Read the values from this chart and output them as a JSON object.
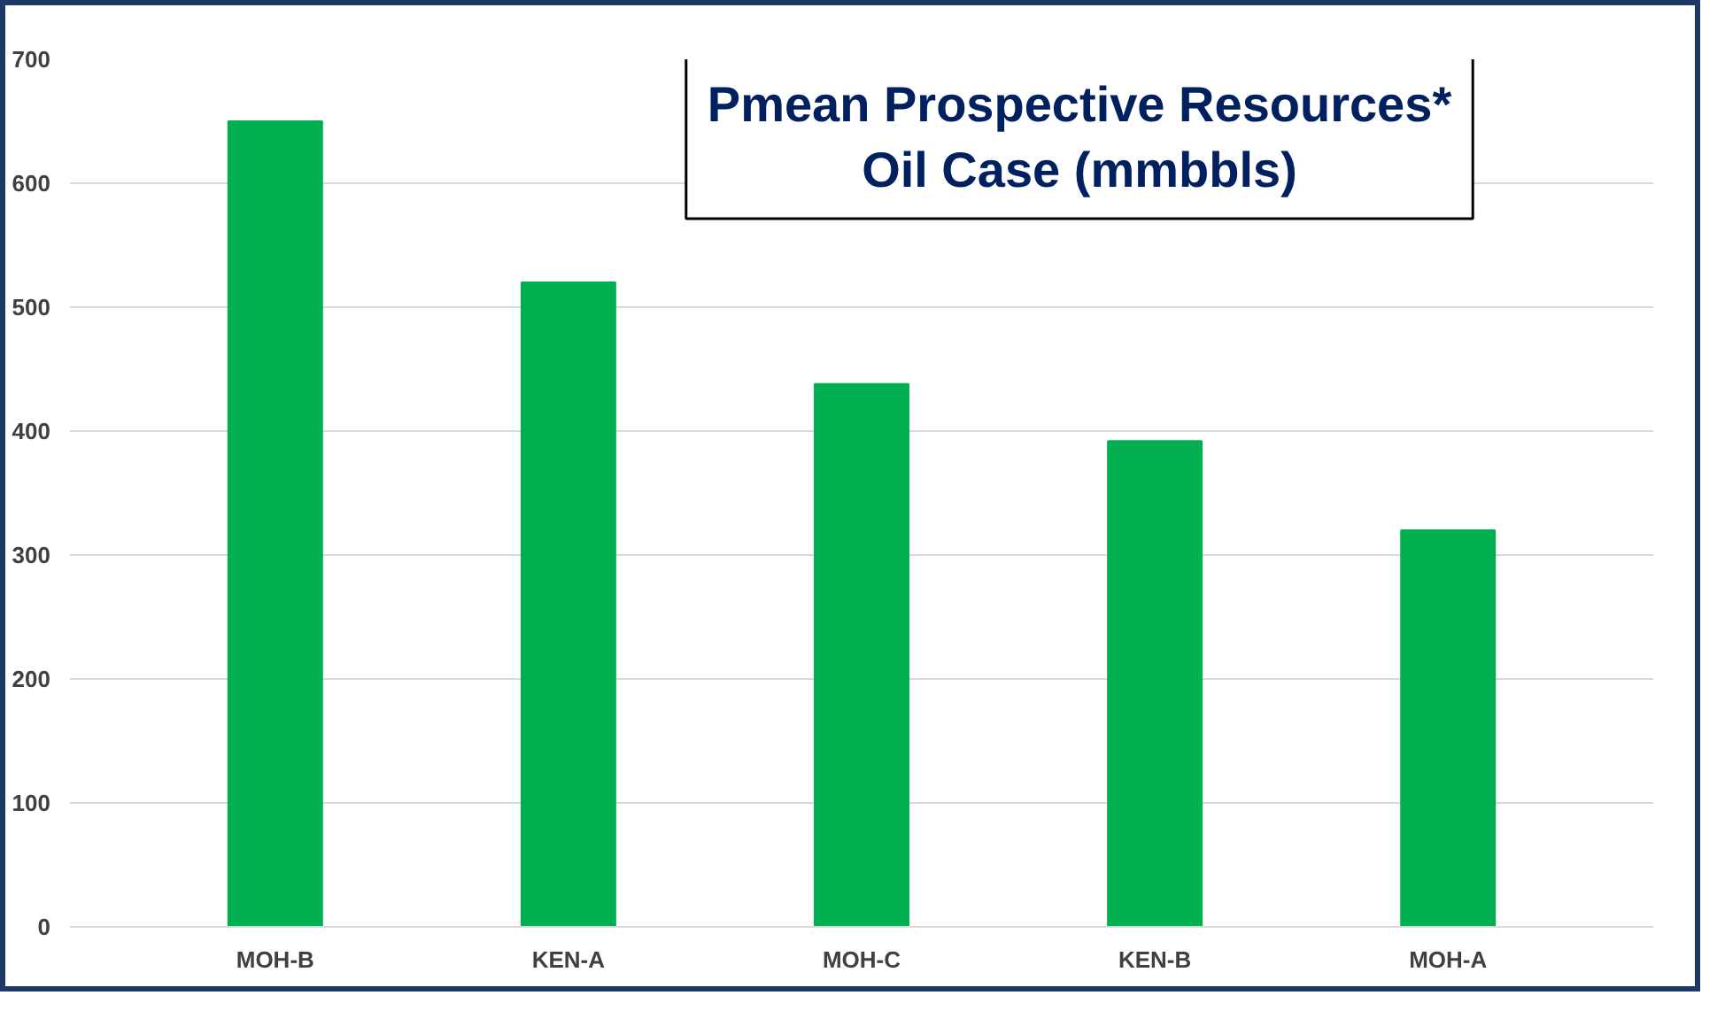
{
  "chart_data": {
    "type": "bar",
    "title": "Pmean Prospective Resources*\nOil Case (mmbbls)",
    "categories": [
      "MOH-B",
      "KEN-A",
      "MOH-C",
      "KEN-B",
      "MOH-A"
    ],
    "values": [
      650,
      520,
      438,
      392,
      320
    ],
    "color": "#00b050",
    "ylim": [
      0,
      700
    ],
    "yticks": [
      0,
      100,
      200,
      300,
      400,
      500,
      600,
      700
    ],
    "grid": "y"
  }
}
